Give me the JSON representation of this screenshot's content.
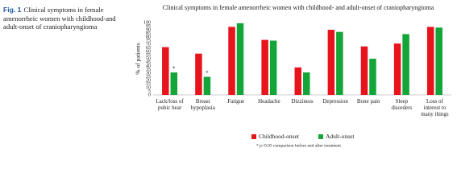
{
  "caption": {
    "label": "Fig. 1",
    "text": "Clinical symptoms in female amenorrheic women with childhood-and adult-onset of craniopharyngioma"
  },
  "chart_data": {
    "type": "bar",
    "title": "Clinical symptoms in female amenorrheic women with childhood- and adult-onset of craniopharyngioma",
    "y_label": "% of patients",
    "categories": [
      "Lack/loss of pubic hear",
      "Breast hypoplasia",
      "Fatigue",
      "Headache",
      "Dizziness",
      "Depression",
      "Bone pain",
      "Sleep disorders",
      "Loss of interest to many things"
    ],
    "series": [
      {
        "name": "Childhood-onset",
        "color": "#e8141b",
        "values": [
          66,
          57,
          94,
          76,
          38,
          90,
          67,
          71,
          94
        ]
      },
      {
        "name": "Adult-onset",
        "color": "#13a538",
        "values": [
          31,
          25,
          99,
          75,
          31,
          87,
          50,
          84,
          93
        ]
      }
    ],
    "annotations": [
      {
        "text": "*",
        "category": "Lack/loss of pubic hear",
        "series": "Adult-onset"
      },
      {
        "text": "*",
        "category": "Breast hypoplasia",
        "series": "Adult-onset"
      }
    ],
    "footnote": "* p<0.05 comparison before and after treatment",
    "ylim": [
      0,
      100
    ],
    "yticks": [
      0,
      5,
      10,
      15,
      20,
      25,
      30,
      35,
      40,
      45,
      50,
      55,
      60,
      65,
      70,
      75,
      80,
      85,
      90,
      95,
      100
    ],
    "grid": false,
    "legend": "bottom"
  }
}
